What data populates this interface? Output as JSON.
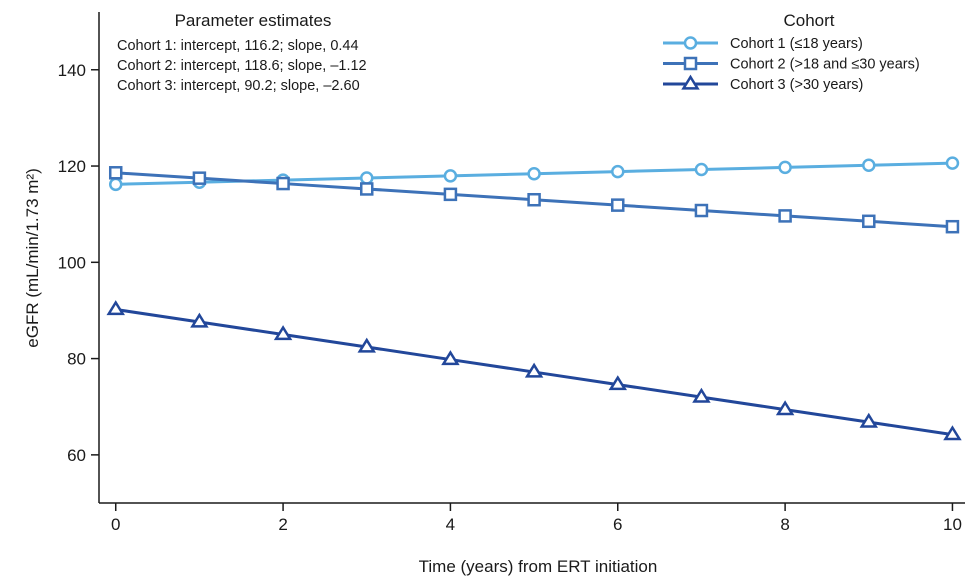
{
  "chart_data": {
    "type": "line",
    "xlabel": "Time (years) from ERT initiation",
    "ylabel": "eGFR (mL/min/1.73 m²)",
    "xlim": [
      -0.2,
      10.15
    ],
    "ylim": [
      50,
      152
    ],
    "x_ticks": [
      0,
      2,
      4,
      6,
      8,
      10
    ],
    "y_ticks": [
      60,
      80,
      100,
      120,
      140
    ],
    "x": [
      0,
      1,
      2,
      3,
      4,
      5,
      6,
      7,
      8,
      9,
      10
    ],
    "grid": false,
    "series": [
      {
        "name": "Cohort 1 (≤18 years)",
        "marker": "circle",
        "color": "#5aaee0",
        "values": [
          116.2,
          116.64,
          117.08,
          117.52,
          117.96,
          118.4,
          118.84,
          119.28,
          119.72,
          120.16,
          120.6
        ]
      },
      {
        "name": "Cohort 2 (>18 and ≤30 years)",
        "marker": "square",
        "color": "#3d72b8",
        "values": [
          118.6,
          117.48,
          116.36,
          115.24,
          114.12,
          113.0,
          111.88,
          110.76,
          109.64,
          108.52,
          107.4
        ]
      },
      {
        "name": "Cohort 3 (>30 years)",
        "marker": "triangle",
        "color": "#22479a",
        "values": [
          90.2,
          87.6,
          85.0,
          82.4,
          79.8,
          77.2,
          74.6,
          72.0,
          69.4,
          66.8,
          64.2
        ]
      }
    ],
    "legend": {
      "title": "Cohort",
      "position": "top-right"
    },
    "annotation": {
      "title": "Parameter estimates",
      "lines": [
        "Cohort 1: intercept, 116.2; slope, 0.44",
        "Cohort 2: intercept, 118.6; slope, –1.12",
        "Cohort 3: intercept, 90.2; slope, –2.60"
      ],
      "position": "top-left"
    }
  }
}
